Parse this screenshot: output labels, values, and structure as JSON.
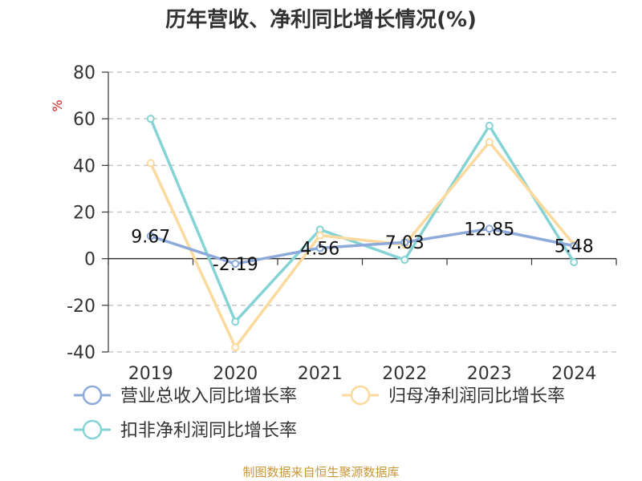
{
  "chart_data": {
    "type": "line",
    "title": "历年营收、净利同比增长情况(%)",
    "ylabel": "%",
    "xlabel": "",
    "categories": [
      "2019",
      "2020",
      "2021",
      "2022",
      "2023",
      "2024"
    ],
    "ylim": [
      -40,
      80
    ],
    "yticks": [
      80,
      60,
      40,
      20,
      0,
      -20,
      -40
    ],
    "grid": true,
    "legend_position": "bottom-left",
    "series": [
      {
        "name": "营业总收入同比增长率",
        "color": "#8eaadb",
        "values": [
          9.67,
          -2.19,
          4.56,
          7.03,
          12.85,
          5.48
        ],
        "data_labels": [
          "9.67",
          "-2.19",
          "4.56",
          "7.03",
          "12.85",
          "5.48"
        ]
      },
      {
        "name": "归母净利润同比增长率",
        "color": "#fcd99c",
        "values": [
          41,
          -38,
          10,
          6,
          50,
          6
        ]
      },
      {
        "name": "扣非净利润同比增长率",
        "color": "#86d3d6",
        "values": [
          60,
          -27,
          12.5,
          -0.5,
          57,
          -1.5
        ]
      }
    ]
  },
  "footer": {
    "source": "制图数据来自恒生聚源数据库"
  }
}
